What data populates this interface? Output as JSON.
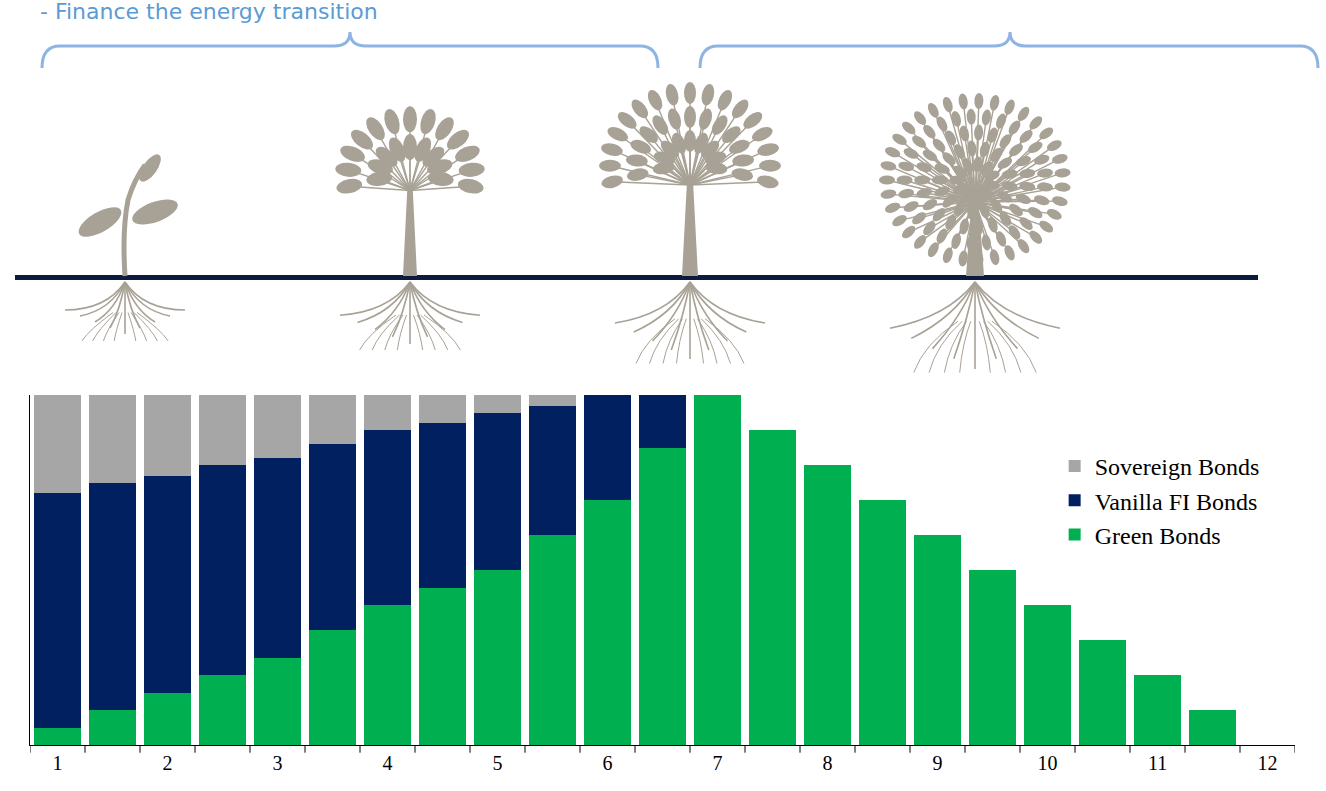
{
  "chart_data": {
    "type": "bar",
    "title": "- Finance the energy transition",
    "categories": [
      "1",
      null,
      "2",
      null,
      "3",
      null,
      "4",
      null,
      "5",
      null,
      "6",
      null,
      "7",
      null,
      "8",
      null,
      "9",
      null,
      "10",
      null,
      "11",
      null,
      "12"
    ],
    "series": [
      {
        "name": "Green Bonds",
        "color": "#00b050",
        "values": [
          5,
          10,
          15,
          20,
          25,
          33,
          40,
          45,
          50,
          60,
          70,
          85,
          100,
          90,
          80,
          70,
          60,
          50,
          40,
          30,
          20,
          10,
          0
        ]
      },
      {
        "name": "Vanilla FI Bonds",
        "color": "#002060",
        "values": [
          67,
          65,
          62,
          60,
          57,
          53,
          50,
          47,
          45,
          37,
          30,
          15,
          0,
          0,
          0,
          0,
          0,
          0,
          0,
          0,
          0,
          0,
          0
        ]
      },
      {
        "name": "Sovereign Bonds",
        "color": "#a6a6a6",
        "values": [
          28,
          25,
          23,
          20,
          18,
          14,
          10,
          8,
          5,
          3,
          0,
          0,
          0,
          0,
          0,
          0,
          0,
          0,
          0,
          0,
          0,
          0,
          0
        ]
      }
    ],
    "stacked": true,
    "ylim": [
      0,
      100
    ],
    "tick_labels": "x",
    "grid": false,
    "legend": "upper right"
  }
}
